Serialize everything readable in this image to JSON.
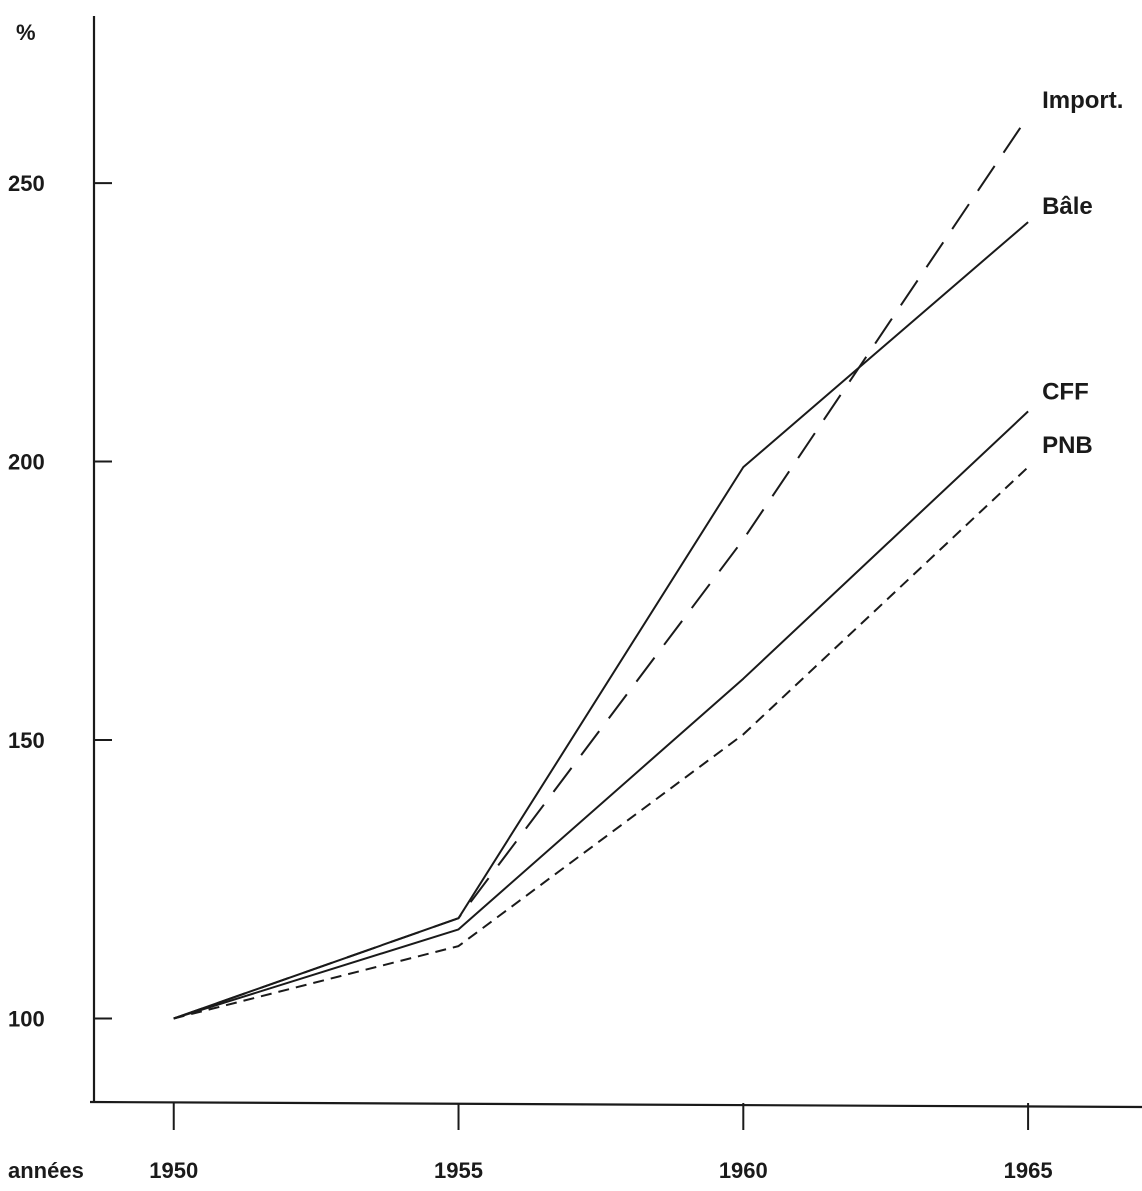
{
  "chart_data": {
    "type": "line",
    "title": "",
    "ylabel": "%",
    "xlabel": "années",
    "x": [
      1950,
      1955,
      1960,
      1965
    ],
    "xlim": [
      1948.6,
      1967.0
    ],
    "ylim": [
      85,
      280
    ],
    "yticks": [
      100,
      150,
      200,
      250
    ],
    "xticks": [
      1950,
      1955,
      1960,
      1965
    ],
    "y_tick_labels": [
      "100",
      "150",
      "200",
      "250"
    ],
    "x_tick_labels": [
      "1950",
      "1955",
      "1960",
      "1965"
    ],
    "grid": false,
    "legend": "series labels at line ends (right)",
    "series": [
      {
        "name": "Import.",
        "values": [
          100,
          118,
          186,
          262
        ],
        "style": "long-dash",
        "color": "#1a1a1a"
      },
      {
        "name": "Bâle",
        "values": [
          100,
          118,
          199,
          243
        ],
        "style": "solid",
        "color": "#1a1a1a"
      },
      {
        "name": "CFF",
        "values": [
          100,
          116,
          161,
          209
        ],
        "style": "solid",
        "color": "#1a1a1a"
      },
      {
        "name": "PNB",
        "values": [
          100,
          113,
          151,
          199
        ],
        "style": "short-dash",
        "color": "#1a1a1a"
      }
    ]
  }
}
